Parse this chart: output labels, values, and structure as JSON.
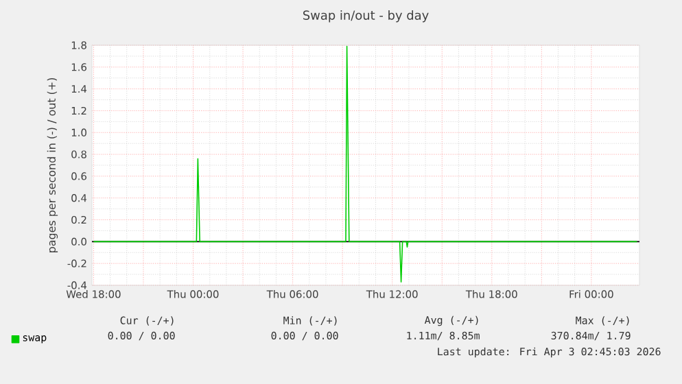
{
  "chart_data": {
    "type": "line",
    "title": "Swap in/out - by day",
    "ylabel": "pages per second in (-) / out (+)",
    "x": [
      "2026-04-01T18:00",
      "2026-04-02T00:12",
      "2026-04-02T00:17",
      "2026-04-02T00:24",
      "2026-04-02T09:12",
      "2026-04-02T09:16",
      "2026-04-02T09:24",
      "2026-04-02T12:27",
      "2026-04-02T12:32",
      "2026-04-02T12:37",
      "2026-04-02T12:51",
      "2026-04-02T12:54",
      "2026-04-02T12:57",
      "2026-04-03T02:45"
    ],
    "series": [
      {
        "name": "swap",
        "color": "#00cc00",
        "values": [
          0,
          0,
          0.76,
          0,
          0,
          1.79,
          0,
          0,
          -0.37,
          0,
          0,
          -0.05,
          0,
          0
        ]
      }
    ],
    "xlim": [
      "2026-04-01T17:54",
      "2026-04-03T02:54"
    ],
    "xticks": [
      {
        "value": "2026-04-01T18:00",
        "label": "Wed 18:00"
      },
      {
        "value": "2026-04-01T21:00",
        "label": null
      },
      {
        "value": "2026-04-02T00:00",
        "label": "Thu 00:00"
      },
      {
        "value": "2026-04-02T03:00",
        "label": null
      },
      {
        "value": "2026-04-02T06:00",
        "label": "Thu 06:00"
      },
      {
        "value": "2026-04-02T09:00",
        "label": null
      },
      {
        "value": "2026-04-02T12:00",
        "label": "Thu 12:00"
      },
      {
        "value": "2026-04-02T15:00",
        "label": null
      },
      {
        "value": "2026-04-02T18:00",
        "label": "Thu 18:00"
      },
      {
        "value": "2026-04-02T21:00",
        "label": null
      },
      {
        "value": "2026-04-03T00:00",
        "label": "Fri 00:00"
      }
    ],
    "ylim": [
      -0.4,
      1.8
    ],
    "yticks": [
      {
        "value": -0.4,
        "label": "-0.4"
      },
      {
        "value": -0.2,
        "label": "-0.2"
      },
      {
        "value": 0,
        "label": "0.0"
      },
      {
        "value": 0.2,
        "label": "0.2"
      },
      {
        "value": 0.4,
        "label": "0.4"
      },
      {
        "value": 0.6,
        "label": "0.6"
      },
      {
        "value": 0.8,
        "label": "0.8"
      },
      {
        "value": 1.0,
        "label": "1.0"
      },
      {
        "value": 1.2,
        "label": "1.2"
      },
      {
        "value": 1.4,
        "label": "1.4"
      },
      {
        "value": 1.6,
        "label": "1.6"
      },
      {
        "value": 1.8,
        "label": "1.8"
      }
    ],
    "ref_lines": [
      {
        "axis": "y",
        "value": 0,
        "color": "#000000"
      }
    ],
    "grid": true,
    "legend": "bottom",
    "marker": "none",
    "line_style": "solid",
    "annotations": [
      "Cur (-/+)",
      "Min (-/+)",
      "Avg (-/+)",
      "Max (-/+)",
      "0.00 /  0.00",
      "0.00 /  0.00",
      "1.11m/  8.85m",
      "370.84m/  1.79",
      "Last update: Fri Apr  3 02:45:03 2026"
    ]
  }
}
